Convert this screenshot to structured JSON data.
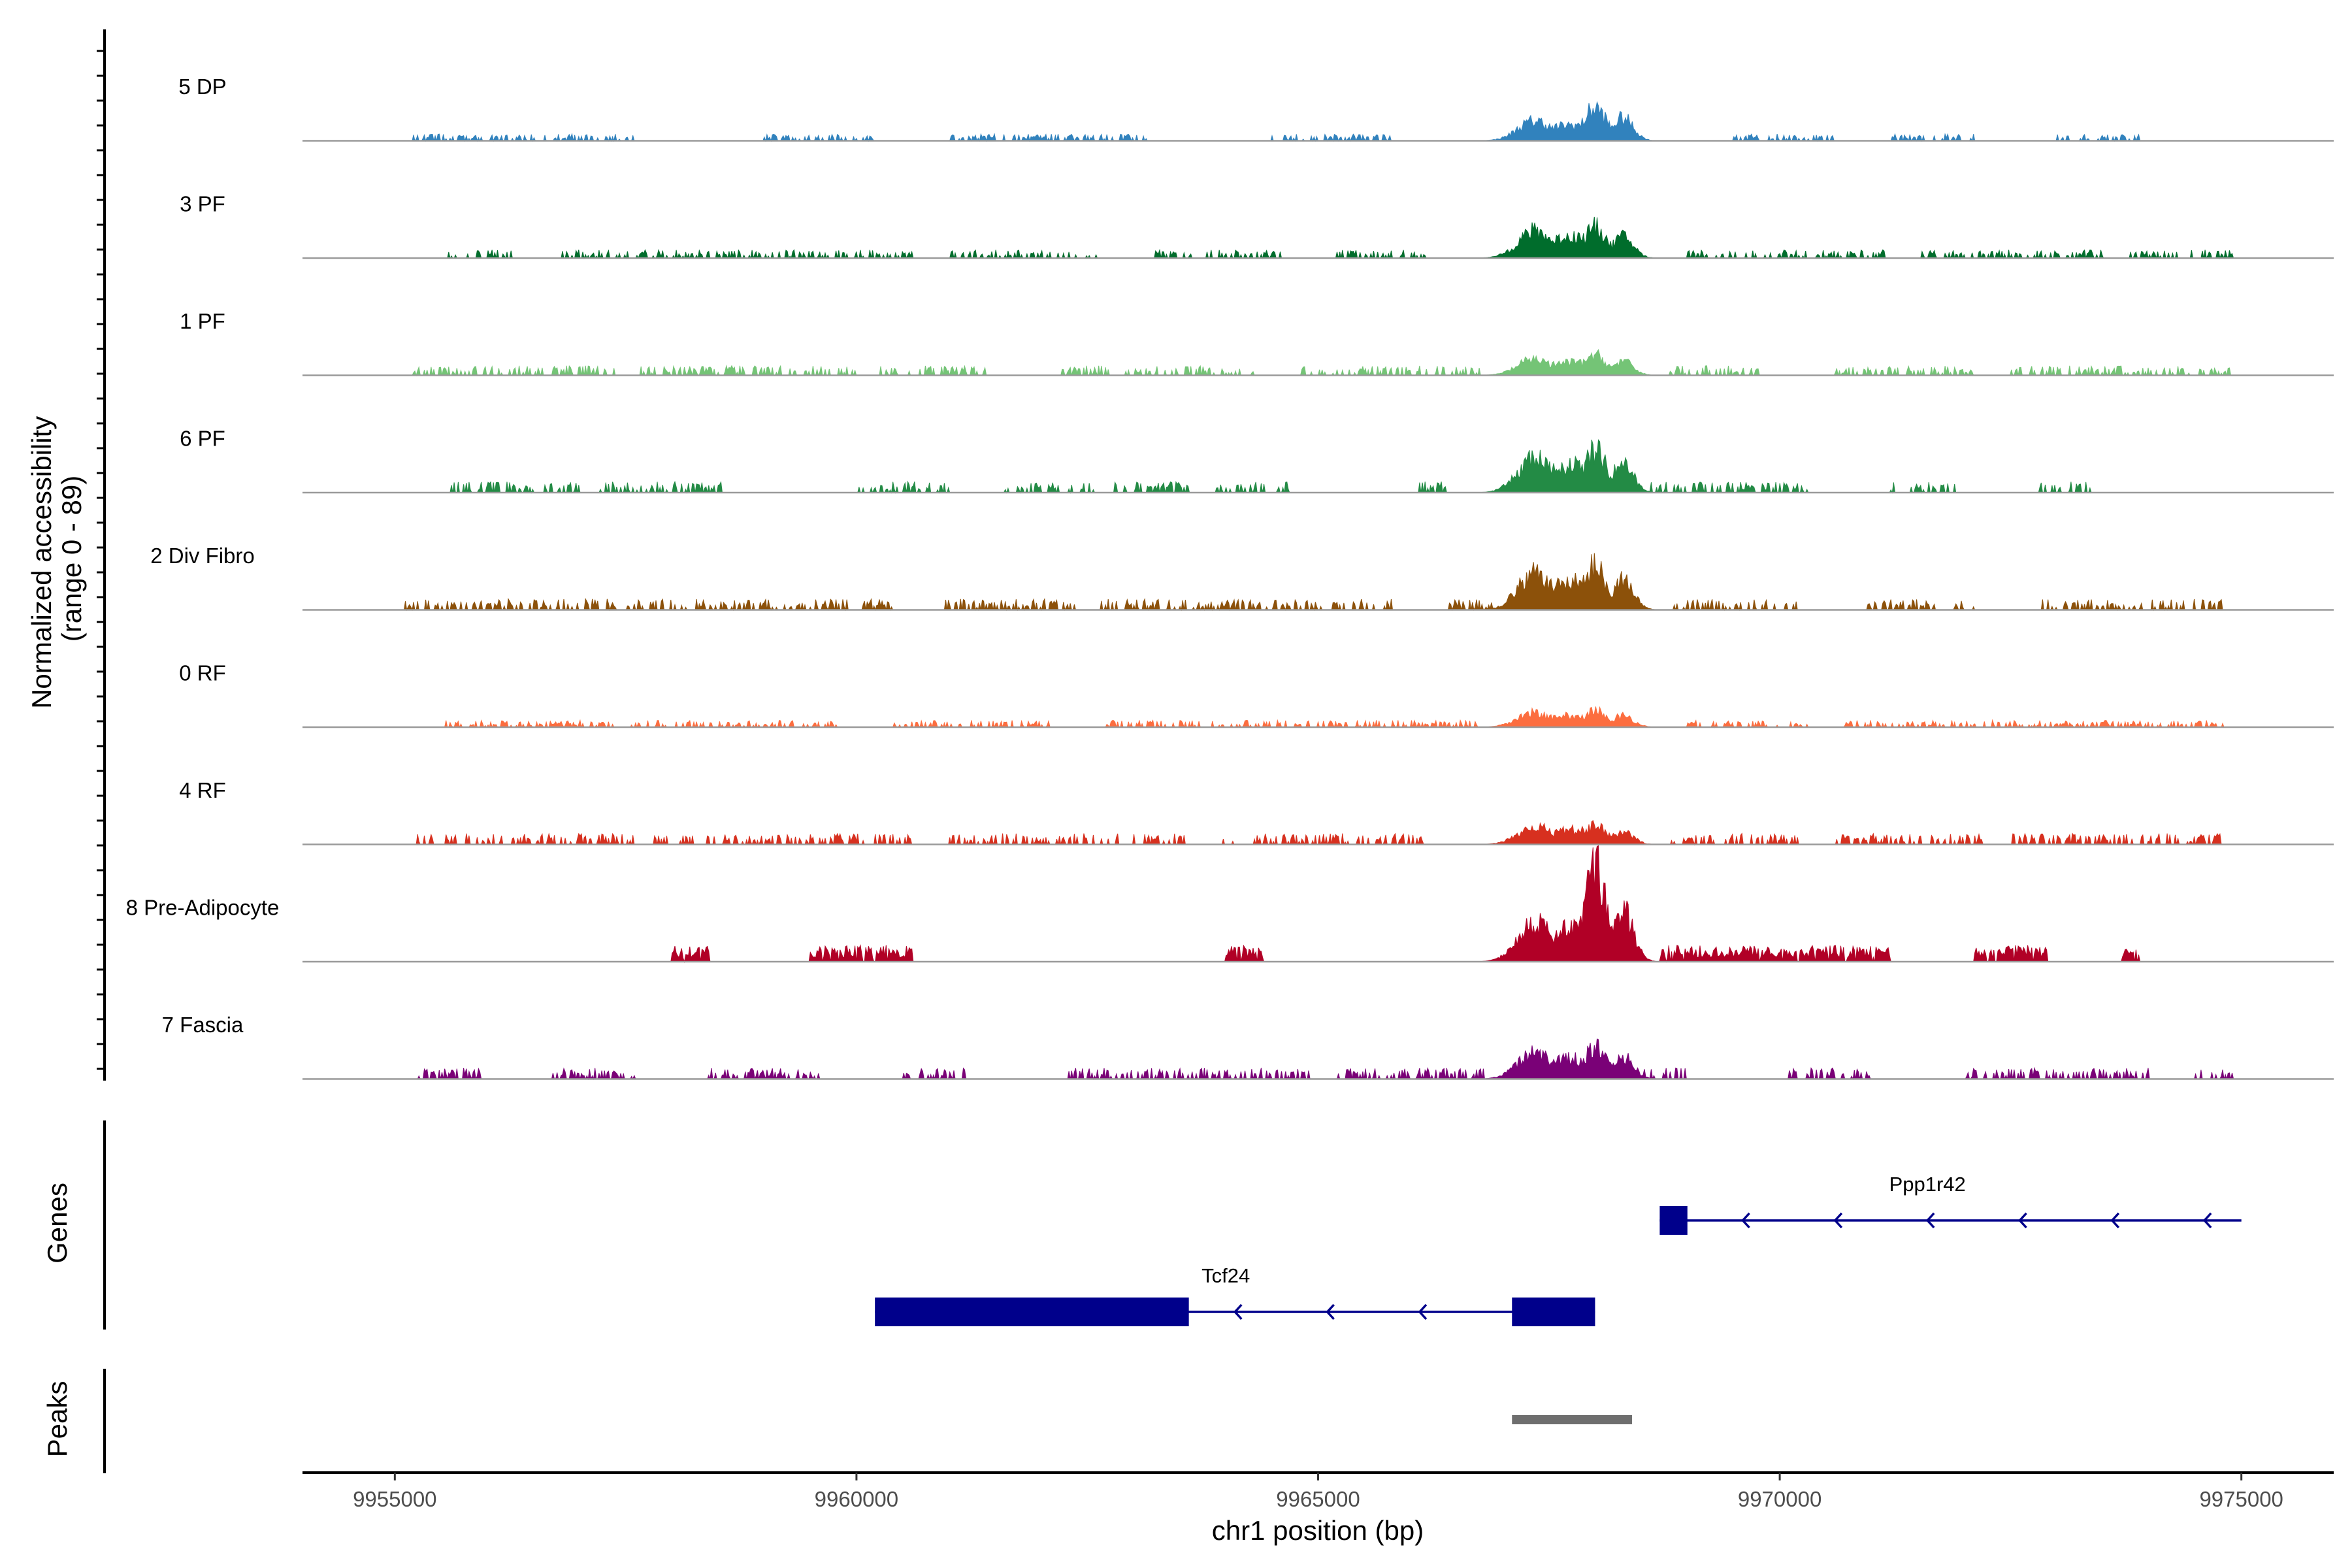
{
  "chart_data": {
    "type": "area",
    "title": "",
    "xlabel": "chr1 position (bp)",
    "ylabel_line1": "Normalized accessibility",
    "ylabel_line2": "(range 0 - 89)",
    "ylim": [
      0,
      89
    ],
    "xlim": [
      9954000,
      9976000
    ],
    "xticks": [
      9955000,
      9960000,
      9965000,
      9970000,
      9975000
    ],
    "xtick_labels": [
      "9955000",
      "9960000",
      "9965000",
      "9970000",
      "9975000"
    ],
    "genes_label": "Genes",
    "peaks_label": "Peaks",
    "tracks": [
      {
        "name": "5 DP",
        "color": "#3182bd",
        "main": [
          0.22,
          0.36
        ],
        "bg": 0.05,
        "spiky": false,
        "clusters": [
          [
            9955200,
            9957600
          ],
          [
            9959000,
            9960200
          ],
          [
            9961000,
            9963200
          ],
          [
            9964500,
            9965800
          ],
          [
            9969500,
            9970600
          ],
          [
            9971200,
            9972200
          ],
          [
            9973000,
            9973900
          ]
        ]
      },
      {
        "name": "3 PF",
        "color": "#006d2c",
        "main": [
          0.3,
          0.34
        ],
        "bg": 0.06,
        "spiky": false,
        "clusters": [
          [
            9955500,
            9956300
          ],
          [
            9956800,
            9960600
          ],
          [
            9961000,
            9962600
          ],
          [
            9963200,
            9964600
          ],
          [
            9965200,
            9966200
          ],
          [
            9969000,
            9971200
          ],
          [
            9971500,
            9973500
          ],
          [
            9973800,
            9974900
          ]
        ]
      },
      {
        "name": "1 PF",
        "color": "#74c476",
        "main": [
          0.18,
          0.22
        ],
        "bg": 0.07,
        "spiky": false,
        "clusters": [
          [
            9955200,
            9957400
          ],
          [
            9957500,
            9960000
          ],
          [
            9960200,
            9961400
          ],
          [
            9962200,
            9964300
          ],
          [
            9964800,
            9966800
          ],
          [
            9968800,
            9969800
          ],
          [
            9970600,
            9972100
          ],
          [
            9972500,
            9974900
          ]
        ]
      },
      {
        "name": "6 PF",
        "color": "#238b45",
        "main": [
          0.38,
          0.46
        ],
        "bg": 0.08,
        "spiky": false,
        "clusters": [
          [
            9955600,
            9957000
          ],
          [
            9957200,
            9958600
          ],
          [
            9960000,
            9961000
          ],
          [
            9961600,
            9962600
          ],
          [
            9962800,
            9963600
          ],
          [
            9963900,
            9964700
          ],
          [
            9966100,
            9966400
          ],
          [
            9968600,
            9970300
          ],
          [
            9971200,
            9971900
          ],
          [
            9972800,
            9973400
          ]
        ]
      },
      {
        "name": "2 Div Fibro",
        "color": "#8c510a",
        "main": [
          0.4,
          0.48
        ],
        "bg": 0.08,
        "spiky": false,
        "clusters": [
          [
            9955100,
            9957400
          ],
          [
            9957500,
            9960400
          ],
          [
            9960900,
            9962400
          ],
          [
            9962600,
            9965800
          ],
          [
            9966400,
            9966900
          ],
          [
            9968800,
            9970200
          ],
          [
            9970900,
            9972100
          ],
          [
            9972700,
            9974800
          ]
        ]
      },
      {
        "name": "0 RF",
        "color": "#fc6d3f",
        "main": [
          0.16,
          0.18
        ],
        "bg": 0.05,
        "spiky": false,
        "clusters": [
          [
            9955500,
            9957400
          ],
          [
            9957500,
            9959800
          ],
          [
            9960400,
            9962100
          ],
          [
            9962700,
            9966800
          ],
          [
            9969000,
            9970300
          ],
          [
            9970700,
            9974800
          ]
        ]
      },
      {
        "name": "4 RF",
        "color": "#d7301f",
        "main": [
          0.2,
          0.2
        ],
        "bg": 0.08,
        "spiky": false,
        "clusters": [
          [
            9955200,
            9957600
          ],
          [
            9957800,
            9960600
          ],
          [
            9961000,
            9963600
          ],
          [
            9963900,
            9966200
          ],
          [
            9968800,
            9970200
          ],
          [
            9970600,
            9972200
          ],
          [
            9972500,
            9974800
          ]
        ]
      },
      {
        "name": "8 Pre-Adipocyte",
        "color": "#b10026",
        "main": [
          0.45,
          1.0
        ],
        "bg": 0.12,
        "spiky": true,
        "clusters": [
          [
            9958000,
            9958400
          ],
          [
            9959500,
            9960600
          ],
          [
            9964000,
            9964400
          ],
          [
            9968700,
            9971200
          ],
          [
            9972100,
            9972900
          ],
          [
            9973700,
            9973900
          ]
        ]
      },
      {
        "name": "7 Fascia",
        "color": "#7a0177",
        "main": [
          0.28,
          0.36
        ],
        "bg": 0.08,
        "spiky": false,
        "clusters": [
          [
            9955200,
            9956000
          ],
          [
            9956700,
            9957600
          ],
          [
            9958400,
            9959600
          ],
          [
            9960500,
            9961200
          ],
          [
            9962300,
            9964900
          ],
          [
            9965200,
            9966800
          ],
          [
            9967000,
            9969000
          ],
          [
            9970100,
            9971000
          ],
          [
            9972000,
            9974000
          ],
          [
            9974500,
            9974900
          ]
        ]
      }
    ],
    "genes": [
      {
        "name": "Ppp1r42",
        "color": "#00008b",
        "strand": "-",
        "line": [
          9968700,
          9975000
        ],
        "exons": [
          [
            9968700,
            9969000
          ]
        ],
        "arrows": [
          9969600,
          9970600,
          9971600,
          9972600,
          9973600,
          9974600
        ]
      },
      {
        "name": "Tcf24",
        "color": "#00008b",
        "strand": "-",
        "line": [
          9960200,
          9968000
        ],
        "exons": [
          [
            9960200,
            9963600
          ],
          [
            9967100,
            9968000
          ]
        ],
        "arrows": [
          9964100,
          9965100,
          9966100
        ]
      }
    ],
    "peaks": [
      {
        "start": 9967100,
        "end": 9968400,
        "color": "#6e6e6e"
      }
    ]
  }
}
